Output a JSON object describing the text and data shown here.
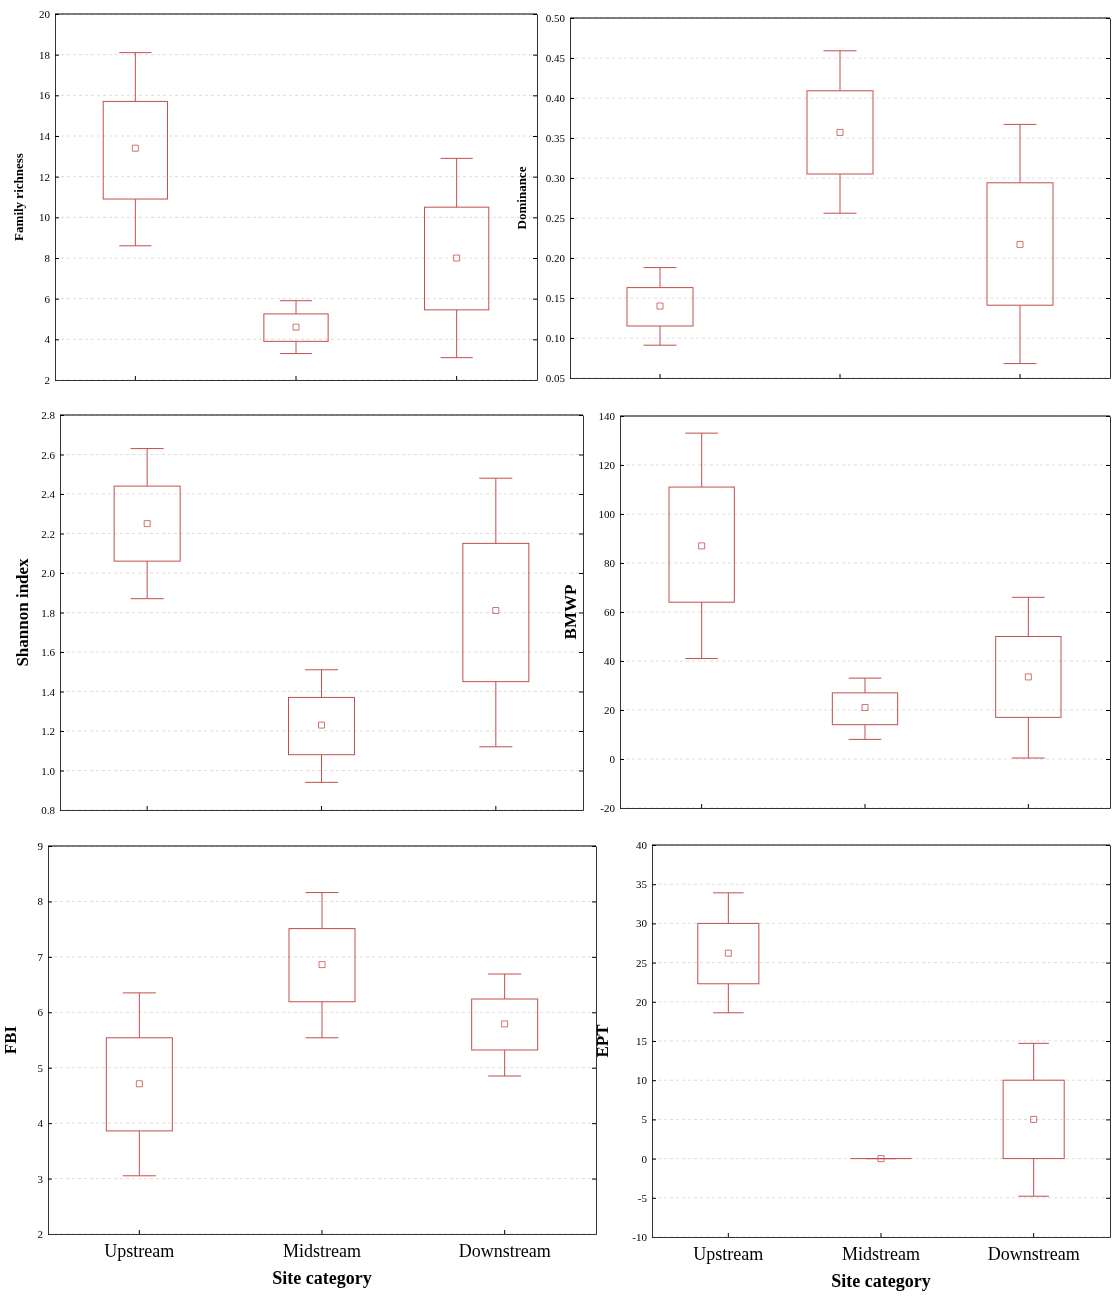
{
  "chart_data": [
    {
      "type": "box",
      "ylabel": "Family richness",
      "categories": [
        null,
        null,
        null
      ],
      "ylim": [
        2,
        20
      ],
      "yticks": [
        2,
        4,
        6,
        8,
        10,
        12,
        14,
        16,
        18,
        20
      ],
      "grid": "y",
      "tick_labels": "y",
      "color": "#c0504d",
      "boxes": [
        {
          "low": 8.6,
          "q1": 10.9,
          "median": 13.4,
          "q3": 15.7,
          "high": 18.1
        },
        {
          "low": 3.3,
          "q1": 3.9,
          "median": 4.6,
          "q3": 5.25,
          "high": 5.9
        },
        {
          "low": 3.1,
          "q1": 5.45,
          "median": 8.0,
          "q3": 10.5,
          "high": 12.9
        }
      ]
    },
    {
      "type": "box",
      "ylabel": "Dominance",
      "categories": [
        null,
        null,
        null
      ],
      "ylim": [
        0.05,
        0.5
      ],
      "yticks": [
        {
          "value": 0.05,
          "label": "0.05"
        },
        {
          "value": 0.1,
          "label": "0.10"
        },
        {
          "value": 0.15,
          "label": "0.15"
        },
        {
          "value": 0.2,
          "label": "0.20"
        },
        {
          "value": 0.25,
          "label": "0.25"
        },
        {
          "value": 0.3,
          "label": "0.30"
        },
        {
          "value": 0.35,
          "label": "0.35"
        },
        {
          "value": 0.4,
          "label": "0.40"
        },
        {
          "value": 0.45,
          "label": "0.45"
        },
        {
          "value": 0.5,
          "label": "0.50"
        }
      ],
      "grid": "y",
      "tick_labels": "y",
      "color": "#c0504d",
      "boxes": [
        {
          "low": 0.091,
          "q1": 0.115,
          "median": 0.14,
          "q3": 0.163,
          "high": 0.188
        },
        {
          "low": 0.256,
          "q1": 0.305,
          "median": 0.357,
          "q3": 0.409,
          "high": 0.459
        },
        {
          "low": 0.068,
          "q1": 0.141,
          "median": 0.217,
          "q3": 0.294,
          "high": 0.367
        }
      ]
    },
    {
      "type": "box",
      "ylabel": "Shannon index",
      "categories": [
        null,
        null,
        null
      ],
      "ylim": [
        0.8,
        2.8
      ],
      "yticks": [
        {
          "value": 0.8,
          "label": "0.8"
        },
        {
          "value": 1,
          "label": "1.0"
        },
        {
          "value": 1.2,
          "label": "1.2"
        },
        {
          "value": 1.4,
          "label": "1.4"
        },
        {
          "value": 1.6,
          "label": "1.6"
        },
        {
          "value": 1.8,
          "label": "1.8"
        },
        {
          "value": 2,
          "label": "2.0"
        },
        {
          "value": 2.2,
          "label": "2.2"
        },
        {
          "value": 2.4,
          "label": "2.4"
        },
        {
          "value": 2.6,
          "label": "2.6"
        },
        {
          "value": 2.8,
          "label": "2.8"
        }
      ],
      "grid": "y",
      "tick_labels": "y",
      "color": "#c0504d",
      "boxes": [
        {
          "low": 1.87,
          "q1": 2.06,
          "median": 2.25,
          "q3": 2.44,
          "high": 2.63
        },
        {
          "low": 0.94,
          "q1": 1.08,
          "median": 1.23,
          "q3": 1.37,
          "high": 1.51
        },
        {
          "low": 1.12,
          "q1": 1.45,
          "median": 1.81,
          "q3": 2.15,
          "high": 2.48
        }
      ]
    },
    {
      "type": "box",
      "ylabel": "BMWP",
      "categories": [
        null,
        null,
        null
      ],
      "ylim": [
        -20,
        140
      ],
      "yticks": [
        -20,
        0,
        20,
        40,
        60,
        80,
        100,
        120,
        140
      ],
      "grid": "y",
      "tick_labels": "y",
      "color": "#c0504d",
      "boxes": [
        {
          "low": 41,
          "q1": 64,
          "median": 87,
          "q3": 111,
          "high": 133
        },
        {
          "low": 8,
          "q1": 14,
          "median": 21,
          "q3": 27,
          "high": 33
        },
        {
          "low": 0.4,
          "q1": 17,
          "median": 33.5,
          "q3": 50,
          "high": 66
        }
      ]
    },
    {
      "type": "box",
      "ylabel": "FBI",
      "xlabel": "Site category",
      "categories": [
        "Upstream",
        "Midstream",
        "Downstream"
      ],
      "ylim": [
        2,
        9
      ],
      "yticks": [
        2,
        3,
        4,
        5,
        6,
        7,
        8,
        9
      ],
      "grid": "y",
      "color": "#c0504d",
      "boxes": [
        {
          "low": 3.05,
          "q1": 3.86,
          "median": 4.71,
          "q3": 5.54,
          "high": 6.35
        },
        {
          "low": 5.54,
          "q1": 6.19,
          "median": 6.86,
          "q3": 7.51,
          "high": 8.16
        },
        {
          "low": 4.85,
          "q1": 5.32,
          "median": 5.79,
          "q3": 6.24,
          "high": 6.69
        }
      ]
    },
    {
      "type": "box",
      "ylabel": "EPT",
      "xlabel": "Site category",
      "categories": [
        "Upstream",
        "Midstream",
        "Downstream"
      ],
      "ylim": [
        -10,
        40
      ],
      "yticks": [
        -10,
        -5,
        0,
        5,
        10,
        15,
        20,
        25,
        30,
        35,
        40
      ],
      "grid": "y",
      "color": "#c0504d",
      "boxes": [
        {
          "low": 18.6,
          "q1": 22.3,
          "median": 26.2,
          "q3": 30,
          "high": 33.9
        },
        {
          "low": 0,
          "q1": 0,
          "median": 0,
          "q3": 0,
          "high": 0
        },
        {
          "low": -4.8,
          "q1": 0,
          "median": 5,
          "q3": 10,
          "high": 14.7
        }
      ]
    }
  ]
}
